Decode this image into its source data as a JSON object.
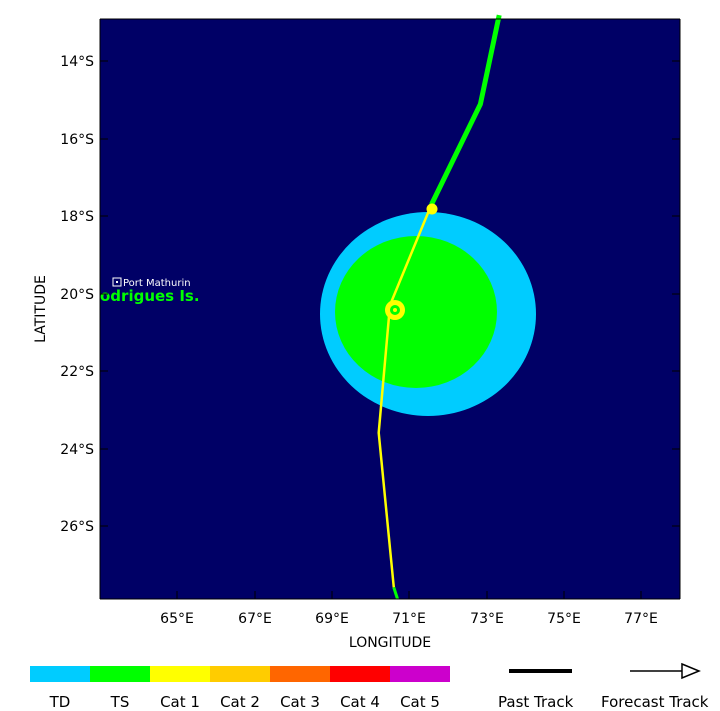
{
  "map": {
    "background": "#000066",
    "xlabel": "LONGITUDE",
    "ylabel": "LATITUDE",
    "lon_range": [
      62.8,
      78.2
    ],
    "lat_range": [
      -28.0,
      -13.0
    ],
    "lon_ticks": [
      "65°E",
      "67°E",
      "69°E",
      "71°E",
      "73°E",
      "75°E",
      "77°E"
    ],
    "lat_ticks": [
      "14°S",
      "16°S",
      "18°S",
      "20°S",
      "22°S",
      "24°S",
      "26°S"
    ],
    "places": {
      "port_mathurin": "Port Mathurin",
      "rodrigues": "odrigues Is."
    }
  },
  "storm": {
    "td_wind_color": "#00ccff",
    "ts_wind_color": "#00ff00",
    "past_track": [
      {
        "lon": 73.4,
        "lat": -12.9
      },
      {
        "lon": 72.9,
        "lat": -15.2
      },
      {
        "lon": 71.6,
        "lat": -17.8
      }
    ],
    "forecast_track": [
      {
        "lon": 71.6,
        "lat": -17.8
      },
      {
        "lon": 70.5,
        "lat": -20.4
      },
      {
        "lon": 70.2,
        "lat": -23.7
      },
      {
        "lon": 70.6,
        "lat": -27.7
      },
      {
        "lon": 70.7,
        "lat": -28.0
      }
    ]
  },
  "legend": {
    "categories": [
      {
        "label": "TD",
        "color": "#00ccff"
      },
      {
        "label": "TS",
        "color": "#00ff00"
      },
      {
        "label": "Cat 1",
        "color": "#ffff00"
      },
      {
        "label": "Cat 2",
        "color": "#ffcc00"
      },
      {
        "label": "Cat 3",
        "color": "#ff6600"
      },
      {
        "label": "Cat 4",
        "color": "#ff0000"
      },
      {
        "label": "Cat 5",
        "color": "#cc00cc"
      }
    ],
    "past_track_label": "Past Track",
    "forecast_track_label": "Forecast Track"
  }
}
